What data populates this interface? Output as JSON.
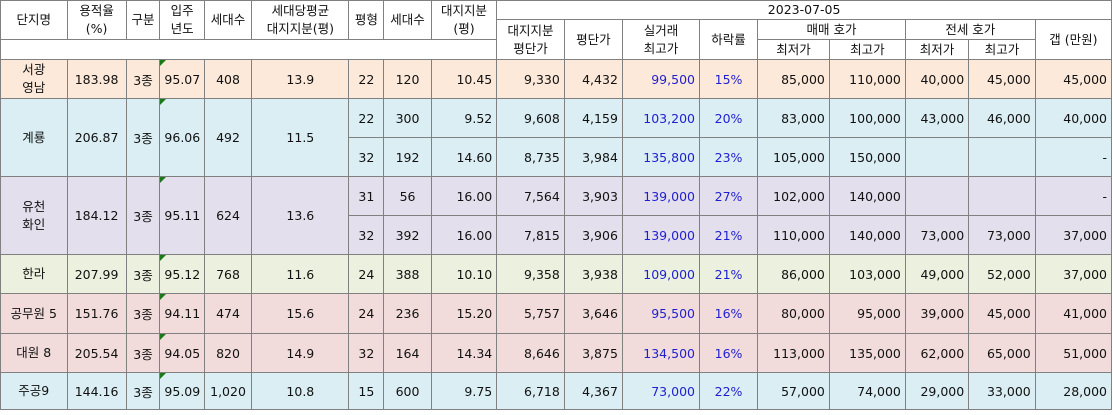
{
  "headers": {
    "date": "2023-07-05",
    "complex": "단지명",
    "far": "용적율\n(%)",
    "zone": "구분",
    "year": "입주\n년도",
    "households": "세대수",
    "avg_land": "세대당평균\n대지지분(평)",
    "pyeong": "평형",
    "unit_households": "세대수",
    "land_share": "대지지분\n(평)",
    "land_price": "대지지분\n평단가",
    "price_per_pyeong": "평단가",
    "max_deal": "실거래\n최고가",
    "drop_rate": "하락률",
    "sale_quote": "매매 호가",
    "jeonse_quote": "전세 호가",
    "min": "최저가",
    "max": "최고가",
    "gap": "갭 (만원)"
  },
  "complexes": [
    {
      "name": "서광\n영남",
      "far": "183.98",
      "zone": "3종",
      "year": "95.07",
      "households": "408",
      "avg_land": "13.9",
      "rows": [
        {
          "pyeong": "22",
          "units": "120",
          "land": "10.45",
          "land_price": "9,330",
          "ppp": "4,432",
          "max_deal": "99,500",
          "drop": "15%",
          "sale_min": "85,000",
          "sale_max": "110,000",
          "jeonse_min": "40,000",
          "jeonse_max": "45,000",
          "gap": "45,000"
        }
      ]
    },
    {
      "name": "계룡",
      "far": "206.87",
      "zone": "3종",
      "year": "96.06",
      "households": "492",
      "avg_land": "11.5",
      "rows": [
        {
          "pyeong": "22",
          "units": "300",
          "land": "9.52",
          "land_price": "9,608",
          "ppp": "4,159",
          "max_deal": "103,200",
          "drop": "20%",
          "sale_min": "83,000",
          "sale_max": "100,000",
          "jeonse_min": "43,000",
          "jeonse_max": "46,000",
          "gap": "40,000"
        },
        {
          "pyeong": "32",
          "units": "192",
          "land": "14.60",
          "land_price": "8,735",
          "ppp": "3,984",
          "max_deal": "135,800",
          "drop": "23%",
          "sale_min": "105,000",
          "sale_max": "150,000",
          "jeonse_min": "",
          "jeonse_max": "",
          "gap": "-"
        }
      ]
    },
    {
      "name": "유천\n화인",
      "far": "184.12",
      "zone": "3종",
      "year": "95.11",
      "households": "624",
      "avg_land": "13.6",
      "rows": [
        {
          "pyeong": "31",
          "units": "56",
          "land": "16.00",
          "land_price": "7,564",
          "ppp": "3,903",
          "max_deal": "139,000",
          "drop": "27%",
          "sale_min": "102,000",
          "sale_max": "140,000",
          "jeonse_min": "",
          "jeonse_max": "",
          "gap": "-"
        },
        {
          "pyeong": "32",
          "units": "392",
          "land": "16.00",
          "land_price": "7,815",
          "ppp": "3,906",
          "max_deal": "139,000",
          "drop": "21%",
          "sale_min": "110,000",
          "sale_max": "140,000",
          "jeonse_min": "73,000",
          "jeonse_max": "73,000",
          "gap": "37,000"
        }
      ]
    },
    {
      "name": "한라",
      "far": "207.99",
      "zone": "3종",
      "year": "95.12",
      "households": "768",
      "avg_land": "11.6",
      "rows": [
        {
          "pyeong": "24",
          "units": "388",
          "land": "10.10",
          "land_price": "9,358",
          "ppp": "3,938",
          "max_deal": "109,000",
          "drop": "21%",
          "sale_min": "86,000",
          "sale_max": "103,000",
          "jeonse_min": "49,000",
          "jeonse_max": "52,000",
          "gap": "37,000"
        }
      ]
    },
    {
      "name": "공무원 5",
      "far": "151.76",
      "zone": "3종",
      "year": "94.11",
      "households": "474",
      "avg_land": "15.6",
      "rows": [
        {
          "pyeong": "24",
          "units": "236",
          "land": "15.20",
          "land_price": "5,757",
          "ppp": "3,646",
          "max_deal": "95,500",
          "drop": "16%",
          "sale_min": "80,000",
          "sale_max": "95,000",
          "jeonse_min": "39,000",
          "jeonse_max": "45,000",
          "gap": "41,000"
        }
      ]
    },
    {
      "name": "대원 8",
      "far": "205.54",
      "zone": "3종",
      "year": "94.05",
      "households": "820",
      "avg_land": "14.9",
      "rows": [
        {
          "pyeong": "32",
          "units": "164",
          "land": "14.34",
          "land_price": "8,646",
          "ppp": "3,875",
          "max_deal": "134,500",
          "drop": "16%",
          "sale_min": "113,000",
          "sale_max": "135,000",
          "jeonse_min": "62,000",
          "jeonse_max": "65,000",
          "gap": "51,000"
        }
      ]
    },
    {
      "name": "주공9",
      "far": "144.16",
      "zone": "3종",
      "year": "95.09",
      "households": "1,020",
      "avg_land": "10.8",
      "rows": [
        {
          "pyeong": "15",
          "units": "600",
          "land": "9.75",
          "land_price": "6,718",
          "ppp": "4,367",
          "max_deal": "73,000",
          "drop": "22%",
          "sale_min": "57,000",
          "sale_max": "74,000",
          "jeonse_min": "29,000",
          "jeonse_max": "33,000",
          "gap": "28,000"
        }
      ]
    }
  ],
  "colors": {
    "peach": "#fde9d9",
    "blue": "#daeef3",
    "lavender": "#e4dfec",
    "green": "#ebf1de",
    "pink": "#f2dcdb",
    "price_text": "#1f1fd0",
    "comment_marker": "#1a7a1a"
  }
}
